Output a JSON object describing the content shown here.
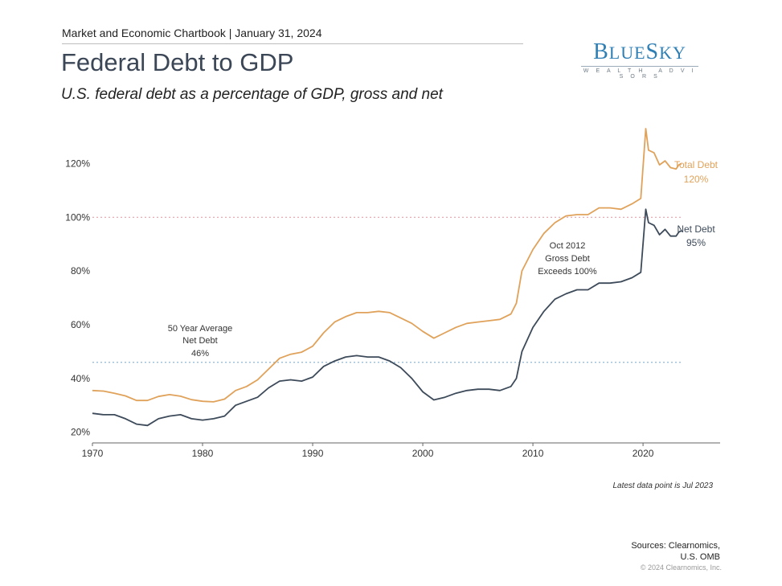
{
  "header": {
    "chartbook_label": "Market and Economic Chartbook | January 31, 2024",
    "title": "Federal Debt to GDP",
    "subtitle": "U.S. federal debt as a percentage of GDP, gross and net"
  },
  "logo": {
    "name": "BlueSky",
    "tagline": "WEALTH ADVISORS"
  },
  "colors": {
    "total_debt": "#e0a25a",
    "net_debt": "#3d4a5a",
    "hundred_line": "#e8a0a8",
    "average_line": "#8fb6d8",
    "axis": "#666666"
  },
  "chart_data": {
    "type": "line",
    "xlim": [
      1970,
      2027
    ],
    "ylim": [
      16,
      136
    ],
    "x_ticks": [
      1970,
      1980,
      1990,
      2000,
      2010,
      2020
    ],
    "x_tick_labels": [
      "1970",
      "1980",
      "1990",
      "2000",
      "2010",
      "2020"
    ],
    "y_ticks": [
      20,
      40,
      60,
      80,
      100,
      120
    ],
    "y_tick_labels": [
      "20%",
      "40%",
      "60%",
      "80%",
      "100%",
      "120%"
    ],
    "reference_lines": [
      {
        "y": 100,
        "style": "dotted"
      },
      {
        "y": 46,
        "style": "dotted"
      }
    ],
    "series": [
      {
        "key": "total",
        "points": [
          [
            1970,
            35.5
          ],
          [
            1971,
            35.3
          ],
          [
            1972,
            34.5
          ],
          [
            1973,
            33.5
          ],
          [
            1974,
            31.8
          ],
          [
            1975,
            31.8
          ],
          [
            1976,
            33.3
          ],
          [
            1977,
            34.0
          ],
          [
            1978,
            33.4
          ],
          [
            1979,
            32.1
          ],
          [
            1980,
            31.5
          ],
          [
            1981,
            31.3
          ],
          [
            1982,
            32.3
          ],
          [
            1983,
            35.5
          ],
          [
            1984,
            37.0
          ],
          [
            1985,
            39.5
          ],
          [
            1986,
            43.5
          ],
          [
            1987,
            47.5
          ],
          [
            1988,
            49.0
          ],
          [
            1989,
            49.8
          ],
          [
            1990,
            52.0
          ],
          [
            1991,
            57.0
          ],
          [
            1992,
            61.0
          ],
          [
            1993,
            63.0
          ],
          [
            1994,
            64.5
          ],
          [
            1995,
            64.5
          ],
          [
            1996,
            65.0
          ],
          [
            1997,
            64.5
          ],
          [
            1998,
            62.5
          ],
          [
            1999,
            60.5
          ],
          [
            2000,
            57.5
          ],
          [
            2001,
            55.0
          ],
          [
            2002,
            57.0
          ],
          [
            2003,
            59.0
          ],
          [
            2004,
            60.5
          ],
          [
            2005,
            61.0
          ],
          [
            2006,
            61.5
          ],
          [
            2007,
            62.0
          ],
          [
            2008,
            64.0
          ],
          [
            2008.5,
            68.0
          ],
          [
            2009,
            80.0
          ],
          [
            2010,
            88.0
          ],
          [
            2011,
            94.0
          ],
          [
            2012,
            98.0
          ],
          [
            2013,
            100.5
          ],
          [
            2014,
            101.0
          ],
          [
            2015,
            101.0
          ],
          [
            2016,
            103.5
          ],
          [
            2017,
            103.5
          ],
          [
            2018,
            103.0
          ],
          [
            2019,
            105.0
          ],
          [
            2019.8,
            107.0
          ],
          [
            2020.25,
            133.0
          ],
          [
            2020.5,
            125.0
          ],
          [
            2021,
            124.0
          ],
          [
            2021.5,
            119.5
          ],
          [
            2022,
            121.0
          ],
          [
            2022.5,
            118.5
          ],
          [
            2023,
            118.0
          ],
          [
            2023.25,
            119.5
          ],
          [
            2023.5,
            120.0
          ]
        ]
      },
      {
        "key": "net",
        "points": [
          [
            1970,
            27.0
          ],
          [
            1971,
            26.5
          ],
          [
            1972,
            26.5
          ],
          [
            1973,
            25.0
          ],
          [
            1974,
            23.0
          ],
          [
            1975,
            22.5
          ],
          [
            1976,
            25.0
          ],
          [
            1977,
            26.0
          ],
          [
            1978,
            26.5
          ],
          [
            1979,
            25.0
          ],
          [
            1980,
            24.5
          ],
          [
            1981,
            25.0
          ],
          [
            1982,
            26.0
          ],
          [
            1983,
            30.0
          ],
          [
            1984,
            31.5
          ],
          [
            1985,
            33.0
          ],
          [
            1986,
            36.5
          ],
          [
            1987,
            39.0
          ],
          [
            1988,
            39.5
          ],
          [
            1989,
            39.0
          ],
          [
            1990,
            40.5
          ],
          [
            1991,
            44.5
          ],
          [
            1992,
            46.5
          ],
          [
            1993,
            48.0
          ],
          [
            1994,
            48.5
          ],
          [
            1995,
            48.0
          ],
          [
            1996,
            48.0
          ],
          [
            1997,
            46.5
          ],
          [
            1998,
            44.0
          ],
          [
            1999,
            40.0
          ],
          [
            2000,
            35.0
          ],
          [
            2001,
            32.0
          ],
          [
            2002,
            33.0
          ],
          [
            2003,
            34.5
          ],
          [
            2004,
            35.5
          ],
          [
            2005,
            36.0
          ],
          [
            2006,
            36.0
          ],
          [
            2007,
            35.5
          ],
          [
            2008,
            37.0
          ],
          [
            2008.5,
            40.0
          ],
          [
            2009,
            50.0
          ],
          [
            2010,
            59.0
          ],
          [
            2011,
            65.0
          ],
          [
            2012,
            69.5
          ],
          [
            2013,
            71.5
          ],
          [
            2014,
            73.0
          ],
          [
            2015,
            73.0
          ],
          [
            2016,
            75.5
          ],
          [
            2017,
            75.5
          ],
          [
            2018,
            76.0
          ],
          [
            2019,
            77.5
          ],
          [
            2019.8,
            79.5
          ],
          [
            2020.25,
            103.0
          ],
          [
            2020.5,
            98.0
          ],
          [
            2021,
            97.0
          ],
          [
            2021.5,
            93.5
          ],
          [
            2022,
            95.5
          ],
          [
            2022.5,
            93.0
          ],
          [
            2023,
            93.0
          ],
          [
            2023.25,
            94.5
          ],
          [
            2023.5,
            95.0
          ]
        ]
      }
    ],
    "series_labels": {
      "total": {
        "name": "Total Debt",
        "value": "120%"
      },
      "net": {
        "name": "Net Debt",
        "value": "95%"
      }
    },
    "annotations": {
      "average": [
        "50 Year Average",
        "Net Debt",
        "46%"
      ],
      "oct2012": [
        "Oct 2012",
        "Gross Debt",
        "Exceeds 100%"
      ]
    }
  },
  "footer": {
    "latest_note": "Latest data point is Jul 2023",
    "sources_line1": "Sources: Clearnomics,",
    "sources_line2": "U.S. OMB",
    "copyright": "© 2024 Clearnomics, Inc."
  }
}
